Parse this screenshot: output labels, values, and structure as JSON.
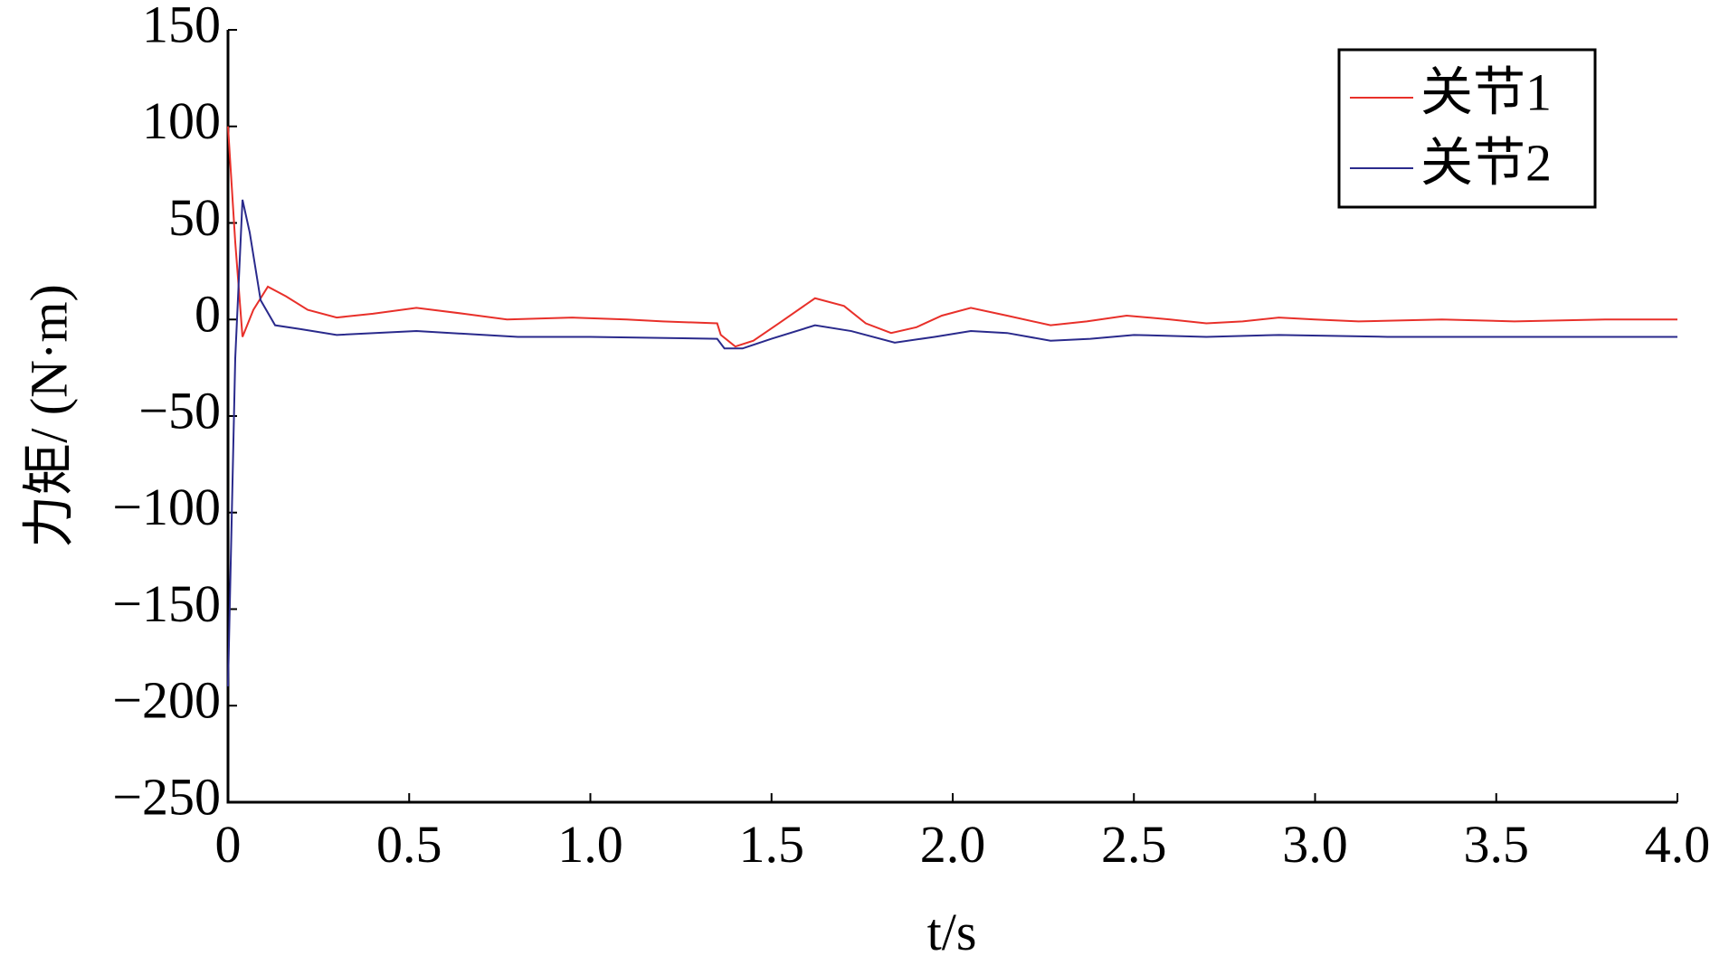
{
  "chart_data": {
    "type": "line",
    "xlabel": "t/s",
    "ylabel": "力矩/ (N·m)",
    "xlim": [
      0,
      4
    ],
    "ylim": [
      -250,
      150
    ],
    "xticks": [
      0,
      0.5,
      {
        "value": 1,
        "label": "1.0"
      },
      1.5,
      {
        "value": 2,
        "label": "2.0"
      },
      2.5,
      {
        "value": 3,
        "label": "3.0"
      },
      3.5,
      {
        "value": 4,
        "label": "4.0"
      }
    ],
    "yticks": [
      {
        "value": -250,
        "label": "−250"
      },
      {
        "value": -200,
        "label": "−200"
      },
      {
        "value": -150,
        "label": "−150"
      },
      {
        "value": -100,
        "label": "−100"
      },
      {
        "value": -50,
        "label": "−50"
      },
      0,
      50,
      100,
      150
    ],
    "legend": "upper right",
    "series": [
      {
        "name": "关节1",
        "color": "#e8302a",
        "x": [
          0,
          0.02,
          0.04,
          0.07,
          0.11,
          0.16,
          0.22,
          0.3,
          0.4,
          0.52,
          0.65,
          0.77,
          0.95,
          1.1,
          1.2,
          1.35,
          1.36,
          1.4,
          1.45,
          1.52,
          1.62,
          1.7,
          1.76,
          1.83,
          1.9,
          1.97,
          2.05,
          2.15,
          2.27,
          2.37,
          2.48,
          2.6,
          2.7,
          2.8,
          2.9,
          3.0,
          3.12,
          3.35,
          3.55,
          3.8,
          4.0
        ],
        "values": [
          100,
          40,
          -9,
          5,
          17,
          12,
          5,
          1,
          3,
          6,
          3,
          0,
          1,
          0,
          -1,
          -2,
          -8,
          -14,
          -11,
          -2,
          11,
          7,
          -2,
          -7,
          -4,
          2,
          6,
          2,
          -3,
          -1,
          2,
          0,
          -2,
          -1,
          1,
          0,
          -1,
          0,
          -1,
          0,
          0
        ]
      },
      {
        "name": "关节2",
        "color": "#2a2a8c",
        "x": [
          0,
          0.02,
          0.04,
          0.06,
          0.09,
          0.13,
          0.2,
          0.3,
          0.52,
          0.8,
          1.0,
          1.35,
          1.37,
          1.42,
          1.5,
          1.62,
          1.72,
          1.84,
          1.95,
          2.05,
          2.15,
          2.27,
          2.38,
          2.5,
          2.7,
          2.9,
          3.2,
          4.0
        ],
        "values": [
          -190,
          -20,
          62,
          45,
          10,
          -3,
          -5,
          -8,
          -6,
          -9,
          -9,
          -10,
          -15,
          -15,
          -10,
          -3,
          -6,
          -12,
          -9,
          -6,
          -7,
          -11,
          -10,
          -8,
          -9,
          -8,
          -9,
          -9
        ]
      }
    ]
  }
}
